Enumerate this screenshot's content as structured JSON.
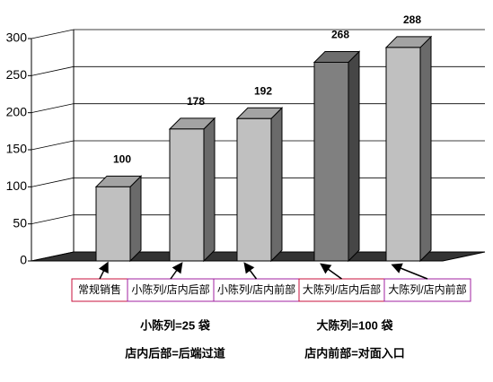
{
  "chart_data": {
    "type": "bar3d",
    "categories": [
      "常规销售",
      "小陈列/店内后部",
      "小陈列/店内前部",
      "大陈列/店内后部",
      "大陈列/店内前部"
    ],
    "values": [
      100,
      178,
      192,
      268,
      288
    ],
    "colors": [
      "#c0c0c0",
      "#c0c0c0",
      "#c0c0c0",
      "#808080",
      "#c0c0c0"
    ],
    "label_box_colors": [
      "#c8103c",
      "#a020a0",
      "#a020a0",
      "#c8103c",
      "#a020a0"
    ],
    "ylim": [
      0,
      300
    ],
    "yticks": [
      0,
      50,
      100,
      150,
      200,
      250,
      300
    ],
    "grid": true,
    "notes": [
      "小陈列=25 袋",
      "大陈列=100 袋",
      "店内后部=后端过道",
      "店内前部=对面入口"
    ]
  }
}
